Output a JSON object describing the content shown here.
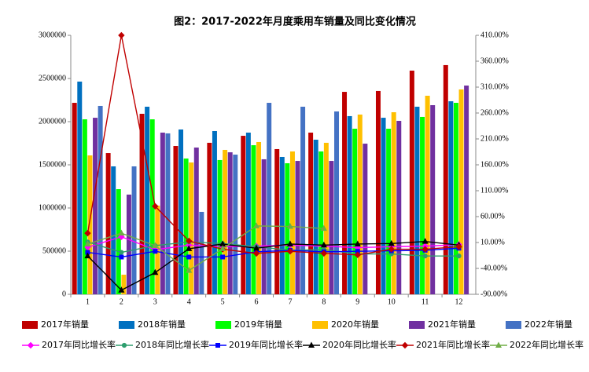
{
  "chart_data": {
    "type": "combo",
    "title": "图2：2017-2022年月度乘用车销量及同比变化情况",
    "categories": [
      "1",
      "2",
      "3",
      "4",
      "5",
      "6",
      "7",
      "8",
      "9",
      "10",
      "11",
      "12"
    ],
    "ylim": [
      0,
      3000000
    ],
    "yticks": [
      0,
      500000,
      1000000,
      1500000,
      2000000,
      2500000,
      3000000
    ],
    "y2lim": [
      -90,
      410
    ],
    "y2ticks": [
      {
        "value": -90,
        "label": "-90.00%"
      },
      {
        "value": -40,
        "label": "-40.00%"
      },
      {
        "value": 10,
        "label": "10.00%"
      },
      {
        "value": 60,
        "label": "60.00%"
      },
      {
        "value": 110,
        "label": "110.00%"
      },
      {
        "value": 160,
        "label": "160.00%"
      },
      {
        "value": 210,
        "label": "210.00%"
      },
      {
        "value": 260,
        "label": "260.00%"
      },
      {
        "value": 310,
        "label": "310.00%"
      },
      {
        "value": 360,
        "label": "360.00%"
      },
      {
        "value": 410,
        "label": "410.00%"
      }
    ],
    "series": [
      {
        "name": "2017年销量",
        "type": "bar",
        "color": "#c00000",
        "values": [
          2218000,
          1636000,
          2091000,
          1718000,
          1755000,
          1836000,
          1682000,
          1873000,
          2345000,
          2355000,
          2591000,
          2655000
        ]
      },
      {
        "name": "2018年销量",
        "type": "bar",
        "color": "#0070c0",
        "values": [
          2464000,
          1482000,
          2173000,
          1909000,
          1891000,
          1873000,
          1591000,
          1791000,
          2064000,
          2045000,
          2173000,
          2236000
        ]
      },
      {
        "name": "2019年销量",
        "type": "bar",
        "color": "#00ff00",
        "values": [
          2027000,
          1218000,
          2027000,
          1573000,
          1555000,
          1727000,
          1518000,
          1655000,
          1918000,
          1918000,
          2055000,
          2218000
        ]
      },
      {
        "name": "2020年销量",
        "type": "bar",
        "color": "#ffc000",
        "values": [
          1609000,
          227000,
          1027000,
          1527000,
          1673000,
          1764000,
          1655000,
          1755000,
          2082000,
          2109000,
          2300000,
          2373000
        ]
      },
      {
        "name": "2021年销量",
        "type": "bar",
        "color": "#7030a0",
        "values": [
          2045000,
          1155000,
          1873000,
          1700000,
          1645000,
          1564000,
          1545000,
          1545000,
          1745000,
          2009000,
          2191000,
          2418000
        ]
      },
      {
        "name": "2022年销量",
        "type": "bar",
        "color": "#4472c4",
        "values": [
          2182000,
          1482000,
          1864000,
          955000,
          1618000,
          2218000,
          2173000,
          2118000,
          null,
          null,
          null,
          null
        ]
      },
      {
        "name": "2017年同比增长率",
        "type": "line",
        "axis": "y2",
        "marker": "diamond",
        "color": "#ff00ff",
        "values": [
          1,
          21,
          -4,
          5,
          2,
          3,
          5,
          3,
          0,
          2,
          3,
          6
        ]
      },
      {
        "name": "2018年同比增长率",
        "type": "line",
        "axis": "y2",
        "marker": "circle",
        "color": "#2e9e6e",
        "values": [
          11,
          -9,
          4,
          11,
          8,
          2,
          -5,
          -4,
          -12,
          -12,
          -16,
          -16
        ]
      },
      {
        "name": "2019年同比增长率",
        "type": "line",
        "axis": "y2",
        "marker": "square",
        "color": "#0000ff",
        "values": [
          -9,
          -18,
          -7,
          -18,
          -18,
          -8,
          -5,
          -8,
          -7,
          -6,
          -5,
          -1
        ]
      },
      {
        "name": "2020年同比增长率",
        "type": "line",
        "axis": "y2",
        "marker": "triangle",
        "color": "#000000",
        "values": [
          -16,
          -82,
          -48,
          -2,
          7,
          -1,
          7,
          5,
          7,
          8,
          12,
          5
        ]
      },
      {
        "name": "2021年同比增长率",
        "type": "line",
        "axis": "y2",
        "marker": "diamond",
        "color": "#c00000",
        "values": [
          28,
          410,
          80,
          13,
          -3,
          -11,
          -7,
          -11,
          -14,
          -3,
          -3,
          2
        ]
      },
      {
        "name": "2022年同比增长率",
        "type": "line",
        "axis": "y2",
        "marker": "triangle",
        "color": "#70ad47",
        "values": [
          7,
          28,
          4,
          -44,
          -2,
          42,
          41,
          37,
          null,
          null,
          null,
          null
        ]
      }
    ]
  }
}
